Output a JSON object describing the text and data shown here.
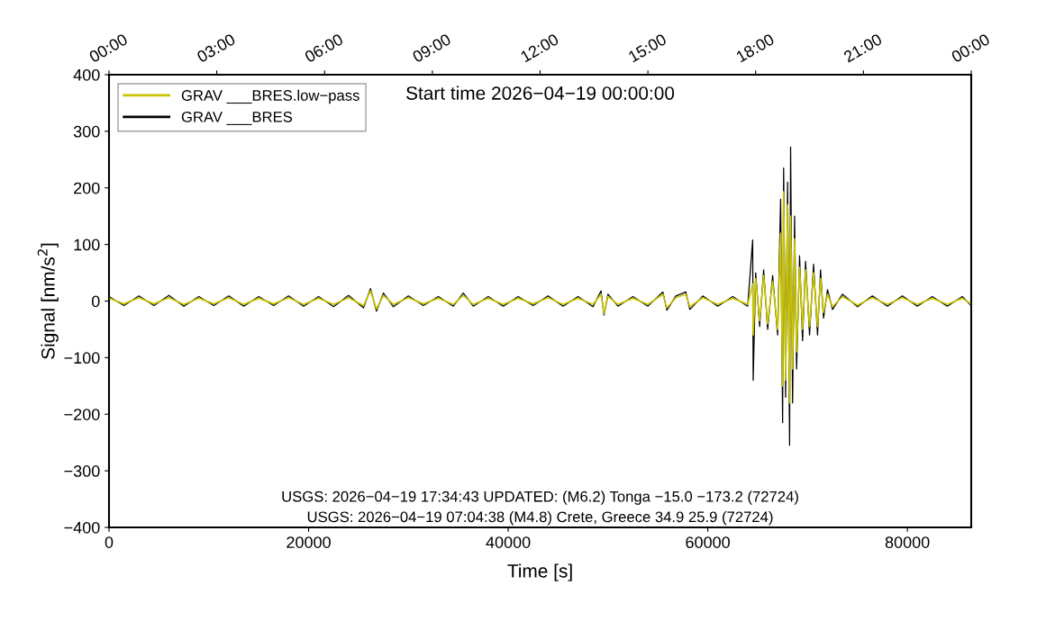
{
  "chart_data": {
    "type": "line",
    "title": "Start time 2026−04−19 00:00:00",
    "xlabel": "Time [s]",
    "ylabel": "Signal [nm/s$^{2}$]",
    "annotations": [
      "USGS: 2026−04−19 17:34:43 UPDATED: (M6.2) Tonga −15.0 −173.2 (72724)",
      "USGS: 2026−04−19 07:04:38 (M4.8) Crete, Greece 34.9 25.9 (72724)"
    ],
    "x": [
      0,
      1500,
      3000,
      4500,
      6000,
      7500,
      9000,
      10500,
      12000,
      13500,
      15000,
      16500,
      18000,
      19500,
      21000,
      22500,
      24000,
      25500,
      26200,
      26800,
      27500,
      28500,
      30000,
      31500,
      33000,
      34500,
      35500,
      36500,
      38000,
      39500,
      41000,
      42500,
      44000,
      45500,
      47000,
      48500,
      49300,
      49600,
      50000,
      51000,
      52500,
      54000,
      55500,
      55900,
      56800,
      57800,
      58200,
      59500,
      61000,
      62500,
      64000,
      64500,
      64550,
      64800,
      65200,
      65600,
      66000,
      66500,
      67000,
      67300,
      67500,
      67600,
      67800,
      68000,
      68200,
      68300,
      68500,
      68700,
      68900,
      69200,
      69500,
      69800,
      70200,
      70600,
      71000,
      71300,
      71600,
      72000,
      72500,
      73500,
      75000,
      76500,
      78000,
      79500,
      81000,
      82500,
      84000,
      85500,
      86400
    ],
    "series": [
      {
        "name": "GRAV ___BRES",
        "color": "#000000",
        "values": [
          8,
          -8,
          9,
          -8,
          10,
          -9,
          8,
          -8,
          9,
          -9,
          8,
          -8,
          9,
          -9,
          8,
          -10,
          10,
          -12,
          22,
          -18,
          14,
          -10,
          9,
          -8,
          8,
          -9,
          14,
          -9,
          8,
          -9,
          8,
          -8,
          9,
          -9,
          8,
          -10,
          18,
          -25,
          12,
          -9,
          8,
          -9,
          16,
          -16,
          9,
          16,
          -15,
          9,
          -9,
          8,
          -9,
          108,
          -140,
          50,
          -45,
          55,
          -50,
          45,
          -60,
          180,
          -215,
          235,
          -170,
          210,
          -255,
          272,
          -180,
          150,
          -120,
          80,
          -70,
          70,
          -60,
          65,
          -60,
          55,
          -30,
          20,
          -15,
          12,
          -10,
          9,
          -9,
          9,
          -9,
          8,
          -9,
          8,
          -8
        ]
      },
      {
        "name": "GRAV ___BRES.low−pass",
        "color": "#c8c400",
        "values": [
          5,
          -5,
          6,
          -5,
          6,
          -6,
          5,
          -5,
          6,
          -6,
          5,
          -5,
          6,
          -6,
          5,
          -6,
          6,
          -8,
          18,
          -14,
          10,
          -6,
          6,
          -5,
          5,
          -6,
          10,
          -6,
          5,
          -6,
          5,
          -5,
          6,
          -6,
          5,
          -6,
          12,
          -22,
          8,
          -6,
          5,
          -6,
          12,
          -12,
          6,
          12,
          -10,
          6,
          -6,
          5,
          -6,
          30,
          -60,
          40,
          -35,
          45,
          -40,
          35,
          -50,
          120,
          -150,
          193,
          -140,
          170,
          -180,
          150,
          -120,
          110,
          -90,
          60,
          -50,
          55,
          -45,
          50,
          -45,
          40,
          -20,
          12,
          -10,
          8,
          -7,
          6,
          -6,
          6,
          -6,
          5,
          -6,
          5,
          -5
        ]
      }
    ],
    "xlim": [
      0,
      86400
    ],
    "xticks": [
      0,
      20000,
      40000,
      60000,
      80000
    ],
    "ylim": [
      -400,
      400
    ],
    "yticks": [
      {
        "value": -400,
        "label": "−400"
      },
      {
        "value": -300,
        "label": "−300"
      },
      {
        "value": -200,
        "label": "−200"
      },
      {
        "value": -100,
        "label": "−100"
      },
      0,
      100,
      200,
      300,
      400
    ],
    "x2lim": [
      "2026-04-19T00:00",
      "2026-04-20T00:00"
    ],
    "x2ticks": [
      {
        "value": "2026-04-19T00:00",
        "label": "00:00"
      },
      {
        "value": "2026-04-19T03:00",
        "label": "03:00"
      },
      {
        "value": "2026-04-19T06:00",
        "label": "06:00"
      },
      {
        "value": "2026-04-19T09:00",
        "label": "09:00"
      },
      {
        "value": "2026-04-19T12:00",
        "label": "12:00"
      },
      {
        "value": "2026-04-19T15:00",
        "label": "15:00"
      },
      {
        "value": "2026-04-19T18:00",
        "label": "18:00"
      },
      {
        "value": "2026-04-19T21:00",
        "label": "21:00"
      },
      {
        "value": "2026-04-20T00:00",
        "label": "00:00"
      }
    ],
    "legend": "top left",
    "grid": false,
    "marker": "none",
    "line_style": "solid"
  }
}
